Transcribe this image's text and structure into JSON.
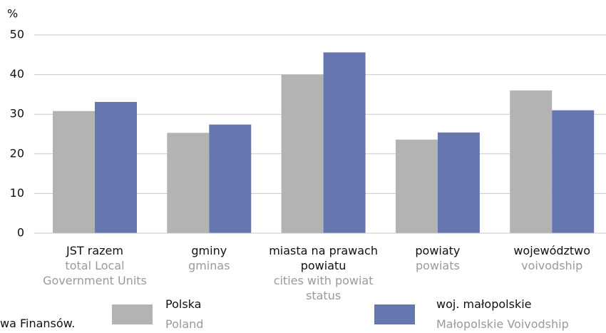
{
  "chart_data": {
    "type": "bar",
    "y_unit": "%",
    "categories": [
      "JST razem",
      "gminy",
      "miasta na prawach powiatu",
      "powiaty",
      "województwo"
    ],
    "categories_en": [
      "total Local Government Units",
      "gminas",
      "cities with powiat status",
      "powiats",
      "voivodship"
    ],
    "series": [
      {
        "name": "Polska",
        "name_en": "Poland",
        "color": "#b3b3b3",
        "values": [
          30.8,
          25.3,
          40,
          23.6,
          36
        ]
      },
      {
        "name": "woj. małopolskie",
        "name_en": "Małopolskie Voivodship",
        "color": "#6677b0",
        "values": [
          33.1,
          27.4,
          45.6,
          25.4,
          31
        ]
      }
    ],
    "ylim": [
      0,
      50
    ],
    "yticks": [
      0,
      10,
      20,
      30,
      40,
      50
    ],
    "grid": true,
    "source": "wa Finansów."
  }
}
